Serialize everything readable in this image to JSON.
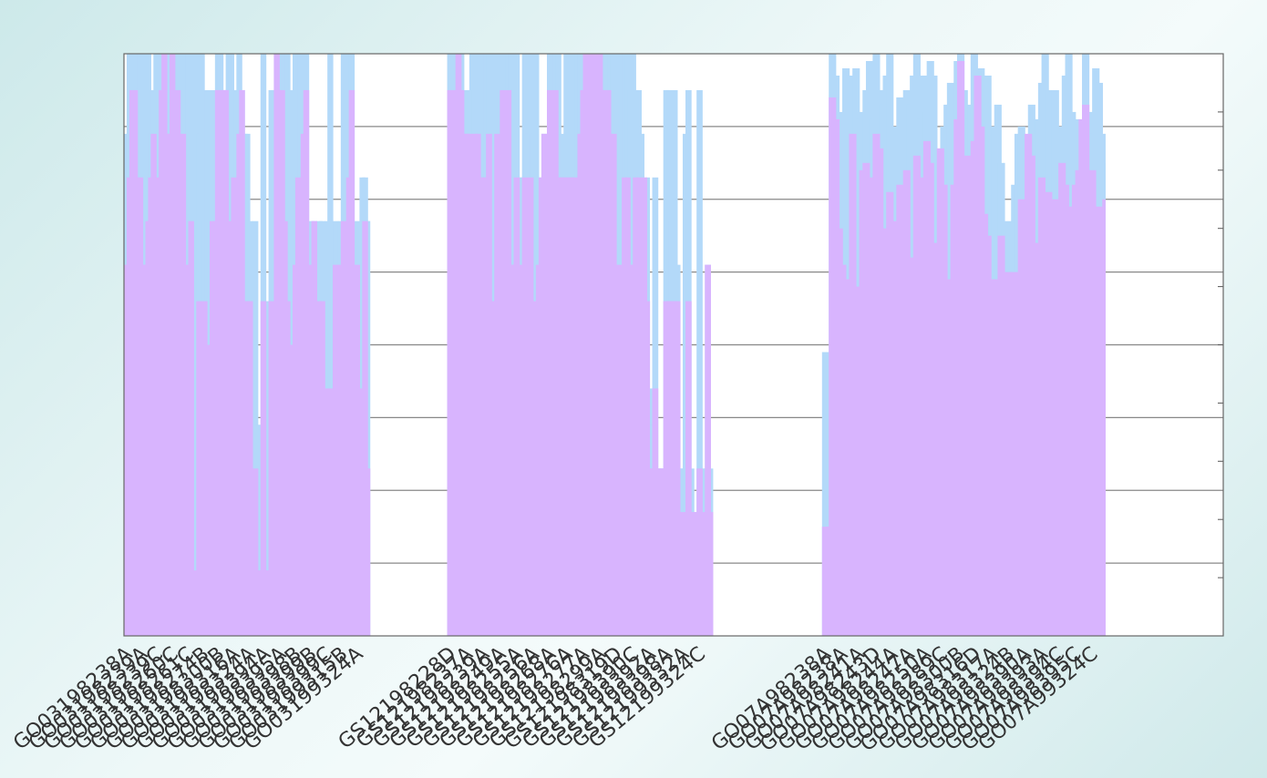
{
  "chart_data": {
    "type": "bar",
    "title": "",
    "xlabel": "",
    "ylabel": "",
    "ylim": [
      0,
      8
    ],
    "grid": true,
    "legend": "none",
    "colors": {
      "back_series": "#b3d9f9",
      "front_series": "#d8b4fe",
      "plot_bg": "#ffffff",
      "grid": "#888888",
      "text": "#333333"
    },
    "groups": [
      {
        "labels": [
          "GO03198238A",
          "GO03198239A",
          "GO03198239C",
          "GO03198260C",
          "GO03198261C",
          "GO03198274B",
          "GO03198300B",
          "GO03198316A",
          "GO03198324A",
          "GO03198394A",
          "GO03198395A",
          "GO03198398B",
          "GO03198399B",
          "GO03198399C",
          "GO03199315B",
          "GO03199324A"
        ],
        "series": [
          {
            "name": "",
            "values": [
              6.9,
              8.0,
              8.0,
              8.0,
              8.0,
              8.0,
              7.5,
              8.0,
              8.0,
              6.9,
              7.5,
              8.0,
              8.0,
              7.5,
              8.0,
              6.9,
              8.0,
              8.0,
              5.7,
              8.0,
              8.0,
              6.9,
              8.0,
              8.0,
              8.0,
              5.7,
              8.0,
              6.9,
              8.0,
              5.7,
              7.5,
              6.3,
              7.5,
              5.7,
              8.0,
              8.0,
              5.7,
              7.5,
              8.0,
              8.0,
              5.7,
              7.5,
              8.0,
              7.5,
              6.9,
              6.9,
              5.7,
              4.6,
              5.7,
              2.9,
              2.9,
              8.0,
              2.9,
              4.6,
              7.5,
              7.5,
              8.0,
              7.5,
              8.0,
              8.0,
              8.0,
              6.9,
              7.5,
              8.0,
              6.3,
              8.0,
              8.0,
              8.0,
              4.0,
              5.7,
              5.7,
              2.3,
              5.7,
              5.7,
              3.4,
              5.7,
              8.0,
              4.0,
              5.7,
              4.6,
              5.7,
              8.0,
              6.3,
              8.0,
              8.0,
              3.4,
              5.7,
              3.4,
              6.3,
              6.3,
              5.7,
              5.7
            ]
          },
          {
            "name": "",
            "values": [
              5.1,
              6.3,
              7.5,
              7.5,
              6.3,
              6.3,
              5.1,
              5.1,
              5.7,
              6.3,
              6.9,
              6.3,
              5.1,
              7.5,
              8.0,
              6.9,
              6.9,
              8.0,
              5.7,
              7.5,
              5.7,
              6.9,
              5.1,
              4.0,
              5.7,
              0.0,
              0.9,
              4.6,
              0.9,
              4.6,
              0.9,
              4.0,
              5.7,
              5.7,
              7.5,
              7.5,
              7.5,
              7.5,
              5.7,
              5.1,
              6.3,
              4.0,
              6.9,
              7.5,
              4.6,
              4.6,
              4.6,
              2.0,
              2.3,
              0.9,
              0.9,
              4.6,
              0.9,
              0.9,
              4.6,
              4.0,
              8.0,
              7.5,
              7.5,
              5.7,
              4.6,
              3.4,
              4.0,
              5.1,
              6.3,
              4.6,
              6.9,
              7.5,
              3.4,
              5.1,
              5.7,
              0.9,
              4.6,
              4.6,
              0.9,
              3.4,
              3.4,
              0.9,
              5.1,
              1.1,
              5.1,
              5.7,
              5.1,
              6.3,
              7.5,
              0.9,
              5.1,
              1.1,
              3.4,
              5.7,
              2.3,
              2.3
            ]
          }
        ]
      },
      {
        "labels": [
          "GS12198228D",
          "GS12198237A",
          "GS12198239A",
          "GS12198249A",
          "GS12198255A",
          "GS12198256A",
          "GS12198268A",
          "GS12198276A",
          "GS12198277A",
          "GS12198299A",
          "GS12198319D",
          "GS12198390C",
          "GS12198392A",
          "GS12198398A",
          "GS12199332A",
          "GS12199324C"
        ],
        "series": [
          {
            "name": "",
            "values": [
              8.0,
              8.0,
              7.5,
              8.0,
              8.0,
              7.5,
              6.9,
              7.5,
              8.0,
              8.0,
              8.0,
              8.0,
              8.0,
              8.0,
              8.0,
              6.9,
              8.0,
              8.0,
              8.0,
              8.0,
              8.0,
              8.0,
              8.0,
              8.0,
              8.0,
              6.3,
              6.3,
              8.0,
              6.9,
              8.0,
              6.9,
              8.0,
              6.3,
              5.7,
              6.9,
              6.3,
              8.0,
              5.7,
              8.0,
              8.0,
              6.3,
              6.9,
              8.0,
              7.5,
              8.0,
              8.0,
              8.0,
              8.0,
              8.0,
              8.0,
              8.0,
              8.0,
              8.0,
              8.0,
              8.0,
              8.0,
              8.0,
              8.0,
              8.0,
              8.0,
              8.0,
              8.0,
              8.0,
              8.0,
              8.0,
              7.5,
              8.0,
              7.5,
              7.5,
              6.9,
              5.1,
              6.3,
              3.4,
              2.9,
              6.3,
              2.3,
              2.3,
              2.3,
              7.5,
              7.5,
              5.7,
              7.5,
              5.1,
              2.3,
              2.3,
              6.9,
              7.5,
              2.3,
              1.7,
              1.7,
              7.5,
              2.3,
              2.3,
              5.1,
              2.3,
              1.4
            ]
          },
          {
            "name": "",
            "values": [
              7.5,
              7.5,
              6.3,
              8.0,
              7.5,
              6.9,
              6.9,
              6.9,
              5.7,
              6.9,
              6.9,
              6.3,
              6.3,
              6.3,
              6.9,
              4.0,
              4.6,
              6.9,
              5.7,
              7.5,
              6.3,
              7.5,
              5.1,
              5.1,
              6.3,
              4.6,
              5.1,
              6.3,
              5.1,
              6.3,
              4.6,
              3.4,
              5.1,
              6.3,
              6.9,
              5.7,
              7.5,
              4.0,
              7.5,
              6.3,
              6.3,
              6.3,
              6.3,
              6.3,
              6.3,
              6.3,
              5.1,
              6.9,
              7.5,
              8.0,
              8.0,
              8.0,
              8.0,
              7.5,
              8.0,
              7.5,
              7.5,
              7.5,
              6.3,
              6.9,
              5.1,
              3.4,
              5.1,
              6.3,
              6.3,
              5.1,
              5.1,
              6.3,
              6.3,
              4.6,
              6.3,
              4.6,
              2.3,
              2.3,
              3.4,
              2.3,
              2.3,
              2.3,
              4.6,
              4.6,
              4.6,
              4.6,
              4.6,
              1.7,
              1.7,
              1.7,
              4.6,
              1.7,
              1.7,
              1.7,
              2.3,
              1.7,
              1.7,
              5.1,
              1.7,
              1.7
            ]
          }
        ]
      },
      {
        "labels": [
          "GO07A98238A",
          "GO07A98238A",
          "GO07A98241A",
          "GO07A98243D",
          "GO07A98244A",
          "GO07A98247A",
          "GO07A98250A",
          "GO07A98289C",
          "GO07A98300B",
          "GO07A98316D",
          "GO07A98317A",
          "GO07A98324B",
          "GO07A98390A",
          "GO07A98393A",
          "GO07A98394C",
          "GO07A98395C",
          "GO07A99324C"
        ],
        "series": [
          {
            "name": "",
            "values": [
              3.9,
              1.5,
              8.0,
              7.7,
              7.2,
              5.6,
              7.8,
              6.6,
              7.7,
              7.8,
              7.1,
              7.2,
              7.5,
              7.9,
              7.1,
              8.0,
              7.5,
              7.3,
              7.7,
              8.0,
              5.7,
              7.0,
              7.4,
              7.2,
              7.5,
              7.3,
              7.7,
              8.0,
              7.1,
              7.7,
              7.2,
              7.9,
              7.7,
              6.0,
              5.4,
              7.0,
              7.3,
              7.6,
              6.7,
              7.9,
              8.0,
              7.5,
              7.1,
              7.3,
              8.0,
              6.2,
              7.8,
              7.4,
              7.7,
              7.0,
              7.0,
              7.3,
              6.5,
              5.6,
              5.7,
              5.5,
              6.2,
              6.9,
              7.0,
              5.5,
              6.1,
              7.3,
              7.0,
              7.1,
              7.6,
              8.0,
              7.5,
              6.8,
              7.5,
              7.0,
              7.0,
              7.7,
              8.0,
              7.2,
              7.1,
              6.8,
              6.9,
              8.0,
              7.2,
              6.9,
              7.8,
              7.6,
              6.5,
              6.9
            ]
          },
          {
            "name": "",
            "values": [
              1.5,
              1.5,
              7.4,
              7.1,
              5.6,
              5.1,
              4.7,
              4.9,
              6.9,
              4.6,
              4.8,
              6.4,
              6.5,
              6.3,
              4.9,
              6.9,
              6.7,
              5.1,
              5.6,
              6.1,
              4.2,
              5.7,
              6.2,
              4.0,
              6.4,
              5.2,
              4.3,
              6.6,
              6.3,
              5.8,
              6.8,
              6.5,
              5.3,
              5.4,
              6.7,
              6.2,
              4.9,
              4.3,
              6.2,
              7.1,
              7.9,
              5.5,
              6.6,
              6.3,
              6.8,
              7.7,
              7.0,
              5.8,
              5.5,
              4.9,
              4.9,
              3.9,
              5.5,
              4.9,
              5.0,
              4.9,
              5.0,
              3.8,
              6.0,
              5.6,
              6.9,
              6.6,
              4.8,
              5.4,
              6.3,
              5.5,
              6.1,
              5.3,
              6.0,
              5.8,
              6.5,
              6.2,
              5.9,
              4.7,
              6.2,
              6.4,
              7.1,
              7.3,
              6.1,
              6.4,
              4.6,
              5.9,
              5.5,
              6.0
            ]
          }
        ]
      }
    ]
  }
}
